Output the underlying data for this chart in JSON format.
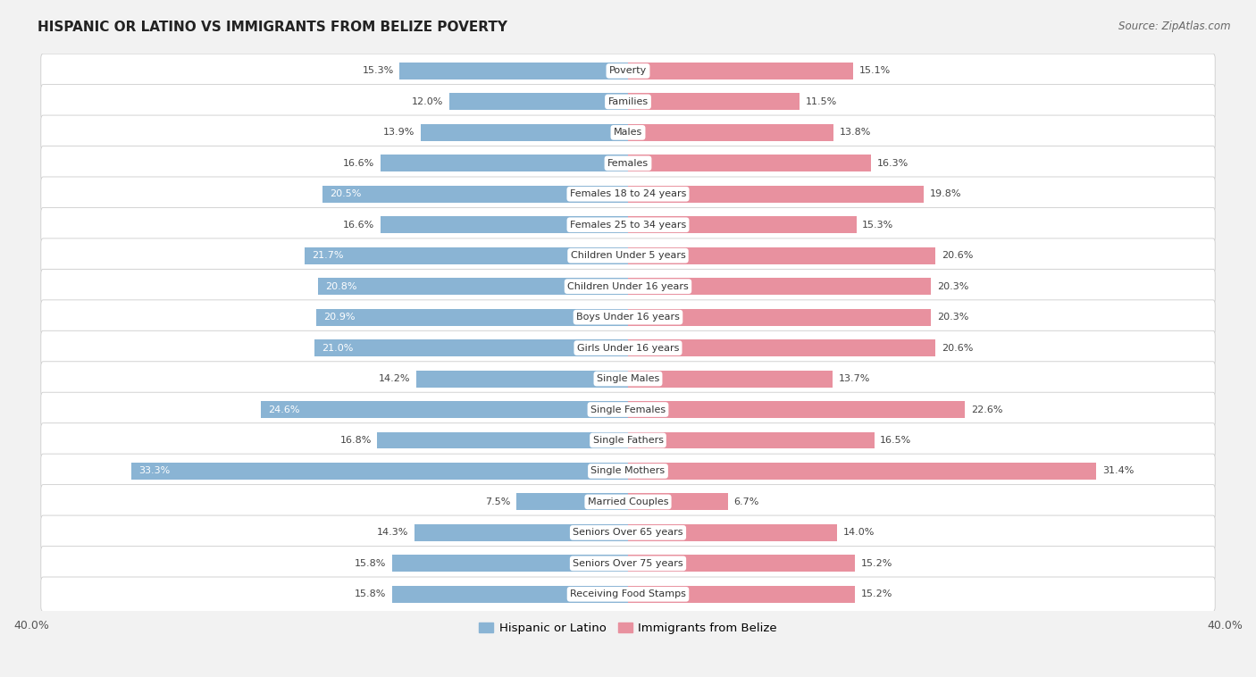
{
  "title": "Hispanic or Latino vs Immigrants from Belize Poverty",
  "source": "Source: ZipAtlas.com",
  "categories": [
    "Poverty",
    "Families",
    "Males",
    "Females",
    "Females 18 to 24 years",
    "Females 25 to 34 years",
    "Children Under 5 years",
    "Children Under 16 years",
    "Boys Under 16 years",
    "Girls Under 16 years",
    "Single Males",
    "Single Females",
    "Single Fathers",
    "Single Mothers",
    "Married Couples",
    "Seniors Over 65 years",
    "Seniors Over 75 years",
    "Receiving Food Stamps"
  ],
  "hispanic_values": [
    15.3,
    12.0,
    13.9,
    16.6,
    20.5,
    16.6,
    21.7,
    20.8,
    20.9,
    21.0,
    14.2,
    24.6,
    16.8,
    33.3,
    7.5,
    14.3,
    15.8,
    15.8
  ],
  "belize_values": [
    15.1,
    11.5,
    13.8,
    16.3,
    19.8,
    15.3,
    20.6,
    20.3,
    20.3,
    20.6,
    13.7,
    22.6,
    16.5,
    31.4,
    6.7,
    14.0,
    15.2,
    15.2
  ],
  "hispanic_color": "#8ab4d4",
  "belize_color": "#e8919f",
  "xlim": 40.0,
  "background_color": "#f2f2f2",
  "bar_background": "#ffffff",
  "legend_hispanic": "Hispanic or Latino",
  "legend_belize": "Immigrants from Belize",
  "label_inside_threshold": 18.0
}
